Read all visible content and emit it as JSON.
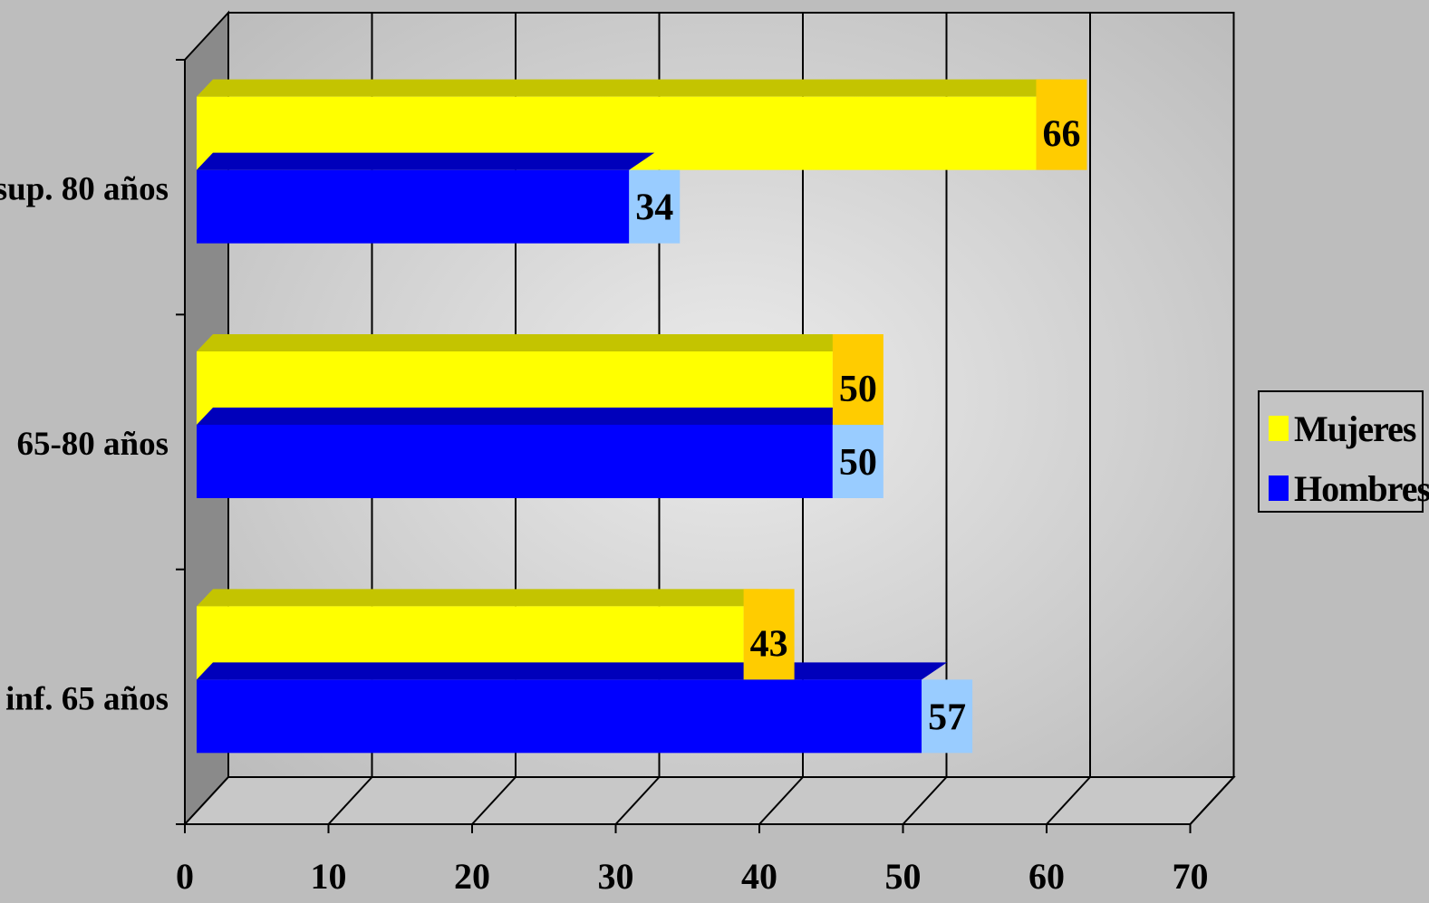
{
  "chart_data": {
    "type": "bar",
    "orientation": "horizontal",
    "three_d": true,
    "categories": [
      "inf. 65 años",
      "65-80 años",
      "sup. 80 años"
    ],
    "series": [
      {
        "name": "Hombres",
        "values": [
          57,
          50,
          34
        ],
        "color": "#0000ff",
        "label_bg": "#99ccff"
      },
      {
        "name": "Mujeres",
        "values": [
          43,
          50,
          66
        ],
        "color": "#ffff00",
        "label_bg": "#ffcc00"
      }
    ],
    "xlim": [
      0,
      70
    ],
    "x_ticks": [
      "0",
      "10",
      "20",
      "30",
      "40",
      "50",
      "60",
      "70"
    ],
    "grid": true,
    "legend_position": "right",
    "title": "",
    "xlabel": "",
    "ylabel": ""
  },
  "legend": {
    "items": [
      {
        "label": "Mujeres",
        "color": "#ffff00"
      },
      {
        "label": "Hombres",
        "color": "#0000ff"
      }
    ]
  }
}
